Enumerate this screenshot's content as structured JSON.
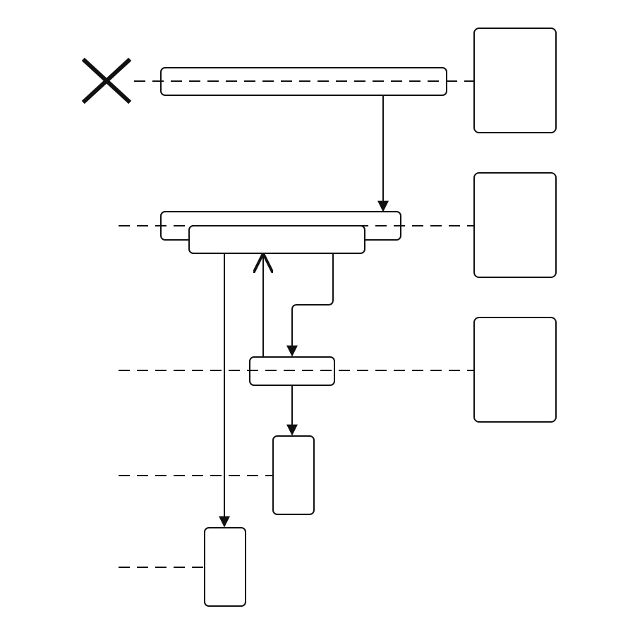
{
  "diagram": {
    "kind": "sequence-like flow with activation bars",
    "colors": {
      "background": "#ffffff",
      "stroke": "#111111"
    },
    "icons": {
      "destroy_marker": "x-mark-icon"
    },
    "text_labels": []
  }
}
